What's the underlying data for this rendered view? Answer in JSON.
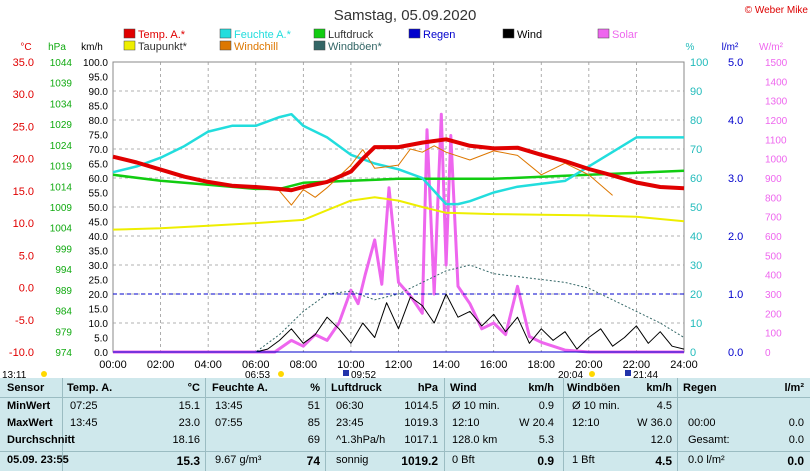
{
  "title": "Samstag, 05.09.2020",
  "credit": "© Weber Mike",
  "colors": {
    "temp": "#e00000",
    "feuchte": "#22dddd",
    "luftdruck": "#11cc11",
    "regen": "#0000cc",
    "wind": "#000000",
    "solar": "#ee66ee",
    "taupunkt": "#eeee00",
    "windchill": "#dd7700",
    "windboeen": "#336666",
    "table_bg": "#cfe8ec"
  },
  "legend": [
    {
      "key": "temp",
      "label": "Temp. A.*",
      "color": "#e00000"
    },
    {
      "key": "feuchte",
      "label": "Feuchte A.*",
      "color": "#22dddd"
    },
    {
      "key": "luftdruck",
      "label": "Luftdruck",
      "color": "#11cc11"
    },
    {
      "key": "regen",
      "label": "Regen",
      "color": "#0000cc"
    },
    {
      "key": "wind",
      "label": "Wind",
      "color": "#000000"
    },
    {
      "key": "solar",
      "label": "Solar",
      "color": "#ee66ee"
    },
    {
      "key": "taupunkt",
      "label": "Taupunkt*",
      "color": "#eeee00"
    },
    {
      "key": "windchill",
      "label": "Windchill",
      "color": "#dd7700"
    },
    {
      "key": "windboeen",
      "label": "Windböen*",
      "color": "#336666"
    }
  ],
  "chart_data": {
    "type": "line",
    "x_unit": "time of day (hours)",
    "xlim": [
      0,
      24
    ],
    "x_ticks": [
      "00:00",
      "02:00",
      "04:00",
      "06:00",
      "08:00",
      "10:00",
      "12:00",
      "14:00",
      "16:00",
      "18:00",
      "20:00",
      "22:00",
      "24:00"
    ],
    "grid": true,
    "axes": {
      "temp": {
        "unit": "°C",
        "min": -10,
        "max": 35,
        "ticks": [
          "35.0",
          "30.0",
          "25.0",
          "20.0",
          "15.0",
          "10.0",
          "5.0",
          "0.0",
          "-5.0",
          "-10.0"
        ]
      },
      "pressure": {
        "unit": "hPa",
        "min": 974,
        "max": 1046,
        "ticks": [
          "1044",
          "1039",
          "1034",
          "1029",
          "1024",
          "1019",
          "1014",
          "1009",
          "1004",
          "999",
          "994",
          "989",
          "984",
          "979",
          "974"
        ]
      },
      "wind": {
        "unit": "km/h",
        "min": 0,
        "max": 100,
        "ticks": [
          "100.0",
          "95.0",
          "90.0",
          "85.0",
          "80.0",
          "75.0",
          "70.0",
          "65.0",
          "60.0",
          "55.0",
          "50.0",
          "45.0",
          "40.0",
          "35.0",
          "30.0",
          "25.0",
          "20.0",
          "15.0",
          "10.0",
          "5.0",
          "0.0"
        ]
      },
      "humidity": {
        "unit": "%",
        "min": 0,
        "max": 100,
        "ticks": [
          "100",
          "90",
          "80",
          "70",
          "60",
          "50",
          "40",
          "30",
          "20",
          "10",
          "0"
        ]
      },
      "rain": {
        "unit": "l/m²",
        "min": 0,
        "max": 5,
        "ticks": [
          "5.0",
          "4.0",
          "3.0",
          "2.0",
          "1.0",
          "0.0"
        ]
      },
      "solar": {
        "unit": "W/m²",
        "min": 0,
        "max": 1500,
        "ticks": [
          "1500",
          "1400",
          "1300",
          "1200",
          "1100",
          "1000",
          "900",
          "800",
          "700",
          "600",
          "500",
          "400",
          "300",
          "200",
          "100",
          "0"
        ]
      }
    },
    "series": [
      {
        "name": "Temp. A.*",
        "axis": "temp",
        "x": [
          0,
          1,
          2,
          3,
          4,
          5,
          6,
          7,
          7.5,
          8,
          9,
          10,
          10.5,
          11,
          12,
          13,
          14,
          15,
          16,
          17,
          18,
          19,
          20,
          21,
          22,
          23,
          24
        ],
        "y": [
          20.3,
          19.4,
          18.3,
          17.2,
          16.4,
          15.8,
          15.6,
          15.3,
          15.1,
          15.6,
          16.4,
          18.0,
          20.0,
          21.8,
          21.8,
          22.5,
          23.0,
          22.0,
          21.6,
          21.7,
          20.6,
          19.6,
          18.4,
          17.4,
          16.3,
          15.6,
          15.4
        ]
      },
      {
        "name": "Feuchte A.*",
        "axis": "humidity",
        "x": [
          0,
          1,
          2,
          3,
          4,
          5,
          6,
          7,
          7.5,
          8,
          9,
          10,
          11,
          12,
          13,
          14,
          14.5,
          15,
          16,
          17,
          18,
          19,
          20,
          21,
          22,
          23,
          24
        ],
        "y": [
          62,
          64,
          67,
          71,
          76,
          78,
          78,
          81,
          82,
          78,
          74,
          68,
          65,
          63,
          60,
          51,
          51,
          52,
          55,
          57,
          58,
          59,
          64,
          69,
          74,
          74,
          74
        ]
      },
      {
        "name": "Luftdruck",
        "axis": "pressure",
        "x": [
          0,
          2,
          4,
          6,
          7,
          8,
          10,
          12,
          14,
          16,
          18,
          20,
          22,
          24
        ],
        "y": [
          1018,
          1016.5,
          1015.5,
          1014.5,
          1014.5,
          1016,
          1016.5,
          1017,
          1017,
          1017,
          1017.5,
          1018,
          1018.5,
          1019
        ]
      },
      {
        "name": "Taupunkt*",
        "axis": "temp",
        "x": [
          0,
          2,
          4,
          6,
          8,
          9,
          10,
          11,
          12,
          13,
          14,
          16,
          18,
          20,
          22,
          24
        ],
        "y": [
          9,
          9.2,
          9.6,
          10,
          10.5,
          12,
          13.5,
          14,
          13.5,
          12.5,
          11.6,
          11.4,
          11.3,
          11.2,
          11,
          10.3
        ]
      },
      {
        "name": "Windchill",
        "axis": "temp",
        "x": [
          7,
          7.5,
          8,
          8.5,
          9,
          10,
          10.5,
          11,
          12,
          12.5,
          13,
          13.5,
          14,
          15,
          16,
          17,
          18,
          19,
          20,
          21
        ],
        "y": [
          15,
          12.8,
          15.2,
          14,
          15.5,
          19,
          21.4,
          18.5,
          19,
          21.5,
          21,
          22,
          21,
          19.8,
          21.2,
          20.5,
          17.5,
          19.3,
          17.5,
          14.3
        ]
      },
      {
        "name": "Wind",
        "axis": "wind",
        "x": [
          0,
          6,
          6.5,
          7,
          7.5,
          8,
          8.5,
          9,
          9.5,
          10,
          10.5,
          11,
          11.5,
          12,
          12.5,
          13,
          13.5,
          14,
          14.5,
          15,
          15.5,
          16,
          16.5,
          17,
          17.5,
          18,
          18.5,
          19,
          19.5,
          20,
          20.5,
          21,
          21.5,
          22,
          22.5,
          23,
          23.5,
          24
        ],
        "y": [
          0,
          0,
          1,
          4,
          8,
          3,
          6,
          12,
          8,
          3,
          10,
          5,
          17,
          8,
          19,
          16,
          10,
          20,
          12,
          14,
          9,
          13,
          7,
          12,
          3,
          8,
          4,
          7,
          1,
          5,
          8,
          2,
          5,
          9,
          3,
          7,
          2,
          1
        ]
      },
      {
        "name": "Windböen*",
        "axis": "wind",
        "x": [
          0,
          6,
          7,
          8,
          9,
          10,
          11,
          12,
          13,
          14,
          15,
          16,
          17,
          18,
          19,
          20,
          21,
          22,
          23,
          24
        ],
        "y": [
          0,
          0,
          6,
          14,
          20,
          21,
          18,
          20,
          24,
          28,
          30,
          27,
          26,
          25,
          24,
          22,
          18,
          14,
          10,
          5
        ]
      },
      {
        "name": "Solar",
        "axis": "solar",
        "x": [
          0,
          6.8,
          7.5,
          8,
          8.5,
          9,
          9.5,
          10,
          10.3,
          10.6,
          11,
          11.3,
          11.6,
          12,
          12.5,
          13,
          13.2,
          13.5,
          13.8,
          14,
          14.2,
          14.5,
          15,
          15.5,
          16,
          16.5,
          17,
          17.5,
          18,
          18.5,
          19,
          20,
          24
        ],
        "y": [
          0,
          0,
          60,
          30,
          90,
          60,
          150,
          320,
          250,
          400,
          580,
          350,
          850,
          360,
          290,
          200,
          1150,
          300,
          1230,
          450,
          1120,
          340,
          250,
          120,
          150,
          90,
          340,
          80,
          50,
          30,
          10,
          0,
          0
        ]
      },
      {
        "name": "Regen",
        "axis": "rain",
        "x": [
          0,
          24
        ],
        "y": [
          0,
          0
        ]
      }
    ],
    "markers": [
      {
        "label": "13:11",
        "row": "axis"
      },
      {
        "label": "06:53",
        "row": "sun"
      },
      {
        "label": "09:52",
        "row": "moon"
      },
      {
        "label": "20:04",
        "row": "sun"
      },
      {
        "label": "21:44",
        "row": "moon"
      }
    ]
  },
  "table": {
    "headers": {
      "sensor": "Sensor",
      "temp": "Temp. A.",
      "temp_unit": "°C",
      "feuchte": "Feuchte A.",
      "feuchte_unit": "%",
      "luftdruck": "Luftdruck",
      "luftdruck_unit": "hPa",
      "wind": "Wind",
      "wind_unit": "km/h",
      "windboeen": "Windböen",
      "windboeen_unit": "km/h",
      "regen": "Regen",
      "regen_unit": "l/m²"
    },
    "rows": {
      "min": {
        "label": "MinWert",
        "temp_time": "07:25",
        "temp_val": "15.1",
        "feuchte_time": "13:45",
        "feuchte_val": "51",
        "druck_time": "06:30",
        "druck_val": "1014.5",
        "wind_time": "Ø 10 min.",
        "wind_val": "0.9",
        "boeen_time": "Ø 10 min.",
        "boeen_val": "4.5",
        "regen_time": "",
        "regen_val": ""
      },
      "max": {
        "label": "MaxWert",
        "temp_time": "13:45",
        "temp_val": "23.0",
        "feuchte_time": "07:55",
        "feuchte_val": "85",
        "druck_time": "23:45",
        "druck_val": "1019.3",
        "wind_time": "12:10",
        "wind_val": "W 20.4",
        "boeen_time": "12:10",
        "boeen_val": "W 36.0",
        "regen_time": "00:00",
        "regen_val": "0.0"
      },
      "avg": {
        "label": "Durchschnitt",
        "temp_time": "",
        "temp_val": "18.16",
        "feuchte_time": "",
        "feuchte_val": "69",
        "druck_time": "^1.3hPa/h",
        "druck_val": "1017.1",
        "wind_time": "128.0 km",
        "wind_val": "5.3",
        "boeen_time": "",
        "boeen_val": "12.0",
        "regen_time": "Gesamt:",
        "regen_val": "0.0"
      },
      "cur": {
        "label": "05.09. 23:55",
        "temp_time": "",
        "temp_val": "15.3",
        "feuchte_time": "9.67 g/m³",
        "feuchte_val": "74",
        "druck_time": "sonnig",
        "druck_val": "1019.2",
        "wind_time": "0 Bft",
        "wind_val": "0.9",
        "boeen_time": "1 Bft",
        "boeen_val": "4.5",
        "regen_time": "0.0 l/m²",
        "regen_val": "0.0"
      }
    }
  }
}
